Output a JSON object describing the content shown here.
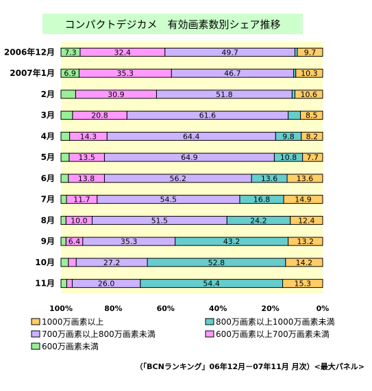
{
  "chart_data": {
    "type": "bar",
    "orientation": "horizontal",
    "stacked": true,
    "percent_stacked": true,
    "title": "コンパクトデジカメ　有効画素数別シェア推移",
    "caption": "（「BCNランキング」06年12月－07年11月 月次）<最大パネル>",
    "categories": [
      "2006年12月",
      "2007年1月",
      "2月",
      "3月",
      "4月",
      "5月",
      "6月",
      "7月",
      "8月",
      "9月",
      "10月",
      "11月"
    ],
    "x_axis": {
      "reversed": true,
      "range": [
        0,
        100
      ],
      "ticks": [
        100,
        80,
        60,
        40,
        20,
        0
      ],
      "tick_labels": [
        "100%",
        "80%",
        "60%",
        "40%",
        "20%",
        "0%"
      ]
    },
    "grid": false,
    "legend": {
      "position": "bottom",
      "columns": 2
    },
    "series": [
      {
        "name": "1000万画素以上",
        "color": "#FFCC66",
        "values": [
          9.7,
          10.3,
          10.6,
          8.5,
          8.2,
          7.7,
          13.6,
          14.9,
          12.4,
          13.2,
          14.2,
          15.3
        ]
      },
      {
        "name": "800万画素以上1000万画素未満",
        "color": "#66CCCC",
        "values": [
          0.9,
          0.8,
          1.1,
          4.7,
          9.8,
          10.8,
          13.6,
          16.8,
          24.2,
          43.2,
          52.8,
          54.4
        ]
      },
      {
        "name": "700万画素以上800万画素未満",
        "color": "#CCB3FF",
        "values": [
          49.7,
          46.7,
          51.8,
          61.6,
          64.4,
          64.9,
          56.2,
          54.5,
          51.5,
          35.3,
          27.2,
          26.0
        ]
      },
      {
        "name": "600万画素以上700万画素未満",
        "color": "#FF99FF",
        "values": [
          32.4,
          35.3,
          30.9,
          20.8,
          14.3,
          13.5,
          13.8,
          11.7,
          10.0,
          6.4,
          3.0,
          2.1
        ]
      },
      {
        "name": "600万画素未満",
        "color": "#99EE99",
        "values": [
          7.3,
          6.9,
          5.6,
          4.4,
          3.3,
          3.1,
          2.8,
          2.1,
          1.9,
          1.9,
          2.8,
          2.2
        ]
      }
    ],
    "data_labels": [
      [
        "9.7",
        "",
        "49.7",
        "32.4",
        "7.3"
      ],
      [
        "10.3",
        "",
        "46.7",
        "35.3",
        "6.9"
      ],
      [
        "10.6",
        "",
        "51.8",
        "30.9",
        ""
      ],
      [
        "8.5",
        "",
        "61.6",
        "20.8",
        ""
      ],
      [
        "8.2",
        "9.8",
        "64.4",
        "14.3",
        ""
      ],
      [
        "7.7",
        "10.8",
        "64.9",
        "13.5",
        ""
      ],
      [
        "13.6",
        "13.6",
        "56.2",
        "13.8",
        ""
      ],
      [
        "14.9",
        "16.8",
        "54.5",
        "11.7",
        ""
      ],
      [
        "12.4",
        "24.2",
        "51.5",
        "10.0",
        ""
      ],
      [
        "13.2",
        "43.2",
        "35.3",
        "6.4",
        ""
      ],
      [
        "14.2",
        "52.8",
        "27.2",
        "",
        ""
      ],
      [
        "15.3",
        "54.4",
        "26.0",
        "",
        ""
      ]
    ],
    "colors": {
      "plot_background": "#FFFFCC",
      "title_background": "#CCFFCC",
      "bar_border": "#000000"
    }
  }
}
